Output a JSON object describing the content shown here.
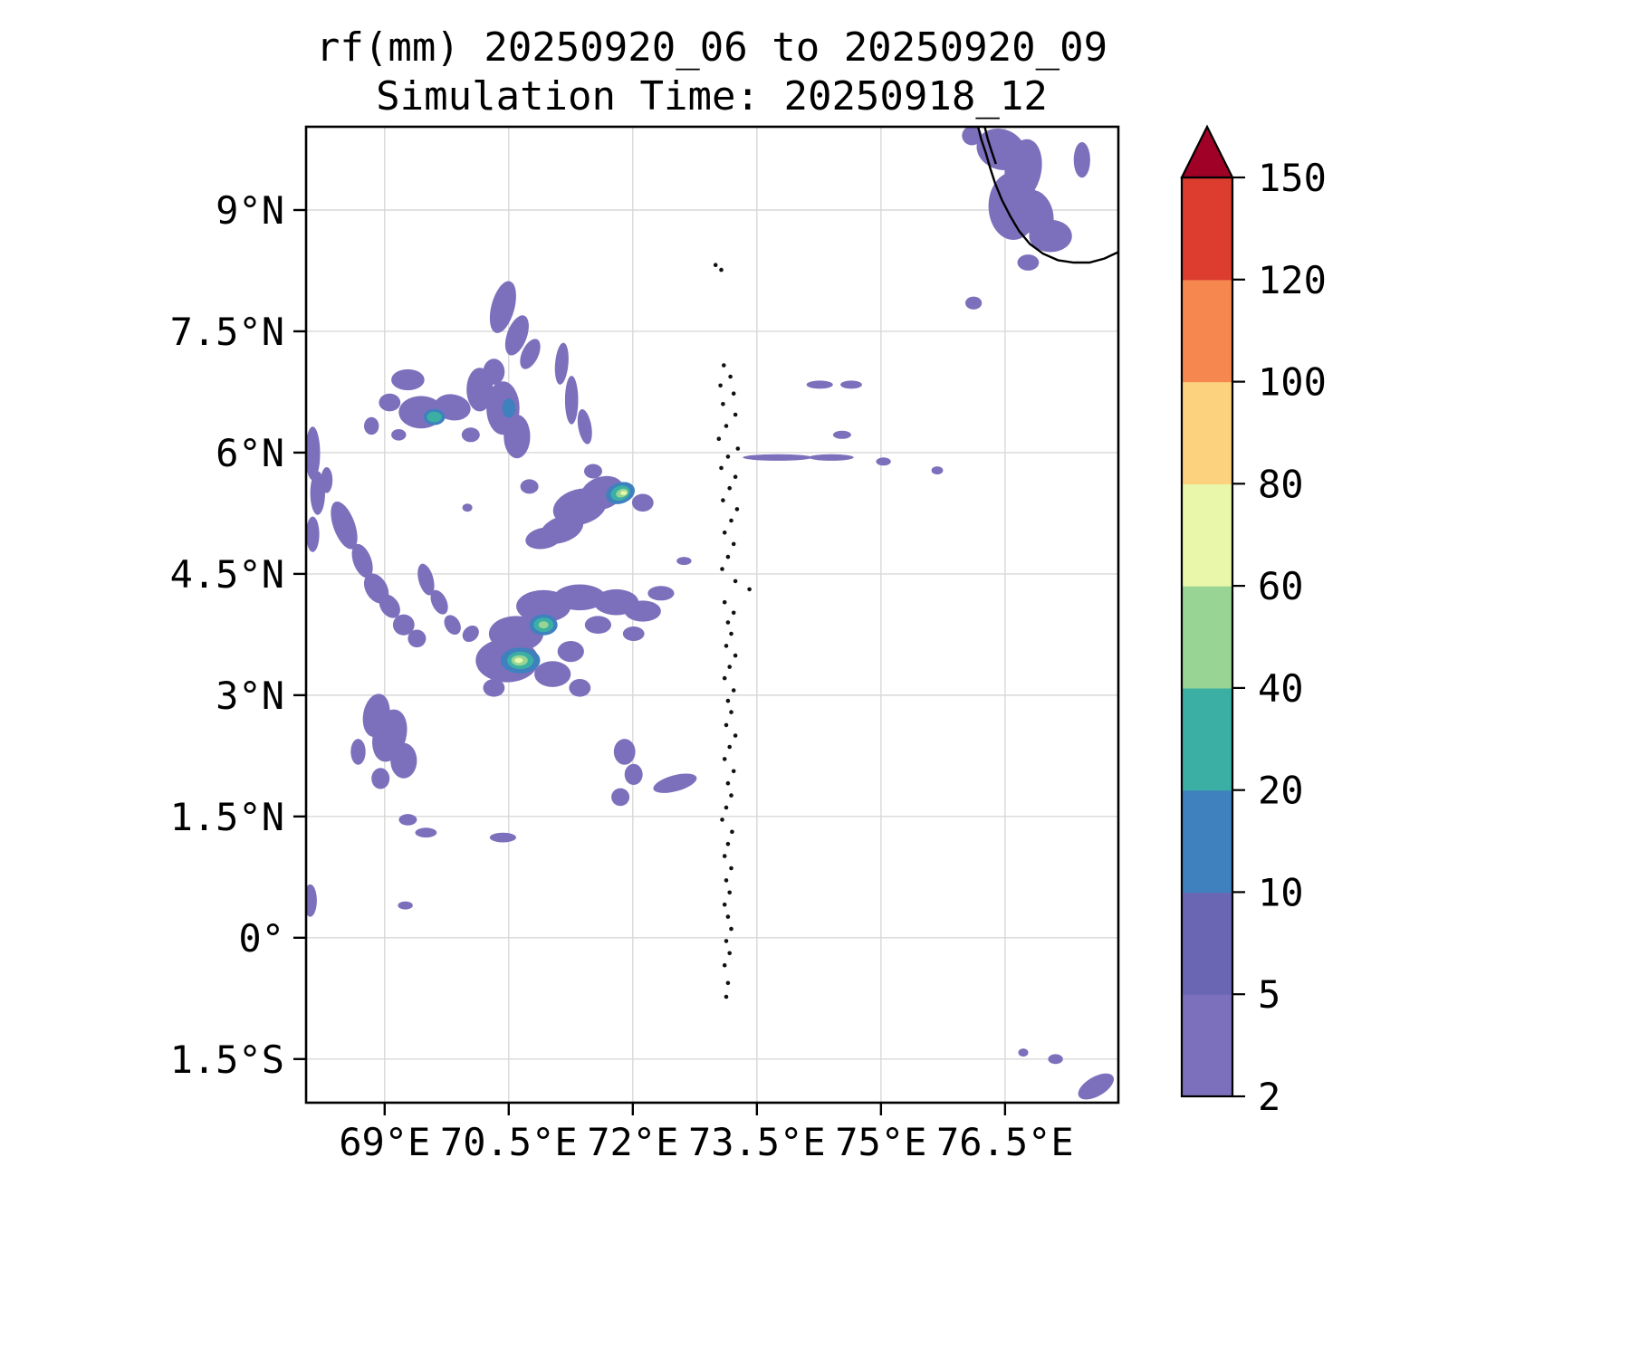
{
  "title": {
    "line1": "rf(mm) 20250920_06 to 20250920_09",
    "line2": "Simulation Time: 20250918_12"
  },
  "chart_data": {
    "type": "heatmap",
    "title": "rf(mm) 20250920_06 to 20250920_09",
    "subtitle": "Simulation Time: 20250918_12",
    "variable": "rf",
    "units": "mm",
    "valid_period": "20250920_06 to 20250920_09",
    "simulation_time": "20250918_12",
    "lon_range": [
      68.05,
      77.87
    ],
    "lat_range": [
      -2.04,
      10.03
    ],
    "grid": true,
    "grid_color": "#d8d8d8",
    "coastline_color": "#000000",
    "x_ticks": {
      "values": [
        69,
        70.5,
        72,
        73.5,
        75,
        76.5
      ],
      "labels": [
        "69°E",
        "70.5°E",
        "72°E",
        "73.5°E",
        "75°E",
        "76.5°E"
      ]
    },
    "y_ticks": {
      "values": [
        9,
        7.5,
        6,
        4.5,
        3,
        1.5,
        0,
        -1.5
      ],
      "labels": [
        "9°N",
        "7.5°N",
        "6°N",
        "4.5°N",
        "3°N",
        "1.5°N",
        "0°",
        "1.5°S"
      ]
    },
    "colorbar": {
      "levels": [
        2,
        5,
        10,
        20,
        40,
        60,
        80,
        100,
        120,
        150
      ],
      "tick_labels": [
        "2",
        "5",
        "10",
        "20",
        "40",
        "60",
        "80",
        "100",
        "120",
        "150"
      ],
      "colors": [
        "#7c70bc",
        "#6b66b4",
        "#3f80bf",
        "#3cafa4",
        "#98d595",
        "#e9f7aa",
        "#fdd27f",
        "#f6874f",
        "#dc3d2e"
      ],
      "over_color": "#a00126"
    },
    "rain_cells": [
      [
        76.45,
        9.75,
        0.3,
        0.25,
        20,
        2
      ],
      [
        76.72,
        9.5,
        0.22,
        0.38,
        10,
        2
      ],
      [
        76.6,
        9.05,
        0.3,
        0.42,
        0,
        2
      ],
      [
        76.88,
        8.95,
        0.2,
        0.3,
        -15,
        2
      ],
      [
        77.05,
        8.68,
        0.26,
        0.2,
        0,
        2
      ],
      [
        77.43,
        9.62,
        0.1,
        0.22,
        0,
        2
      ],
      [
        76.1,
        9.92,
        0.12,
        0.12,
        0,
        2
      ],
      [
        76.78,
        8.35,
        0.13,
        0.1,
        0,
        2
      ],
      [
        76.12,
        7.85,
        0.1,
        0.08,
        0,
        2
      ],
      [
        70.43,
        7.8,
        0.14,
        0.33,
        15,
        2
      ],
      [
        70.6,
        7.45,
        0.12,
        0.26,
        20,
        2
      ],
      [
        70.76,
        7.22,
        0.1,
        0.2,
        25,
        2
      ],
      [
        71.14,
        7.1,
        0.08,
        0.26,
        5,
        2
      ],
      [
        71.26,
        6.65,
        0.08,
        0.3,
        0,
        2
      ],
      [
        71.42,
        6.32,
        0.08,
        0.22,
        -10,
        2
      ],
      [
        69.28,
        6.9,
        0.2,
        0.13,
        0,
        2
      ],
      [
        69.06,
        6.62,
        0.13,
        0.11,
        0,
        2
      ],
      [
        69.44,
        6.5,
        0.27,
        0.2,
        0,
        2
      ],
      [
        69.82,
        6.56,
        0.22,
        0.16,
        10,
        2
      ],
      [
        70.15,
        6.78,
        0.16,
        0.27,
        0,
        2
      ],
      [
        70.32,
        7.0,
        0.13,
        0.16,
        0,
        2
      ],
      [
        70.43,
        6.55,
        0.2,
        0.33,
        0,
        2
      ],
      [
        70.6,
        6.2,
        0.16,
        0.27,
        0,
        2
      ],
      [
        70.04,
        6.22,
        0.11,
        0.09,
        0,
        2
      ],
      [
        69.17,
        6.22,
        0.09,
        0.07,
        0,
        2
      ],
      [
        68.84,
        6.33,
        0.09,
        0.11,
        0,
        2
      ],
      [
        68.13,
        5.99,
        0.09,
        0.33,
        0,
        2
      ],
      [
        68.19,
        5.5,
        0.09,
        0.27,
        0,
        2
      ],
      [
        68.13,
        4.99,
        0.08,
        0.22,
        0,
        2
      ],
      [
        68.3,
        5.66,
        0.07,
        0.16,
        0,
        2
      ],
      [
        68.51,
        5.1,
        0.13,
        0.31,
        -20,
        2
      ],
      [
        68.73,
        4.66,
        0.11,
        0.22,
        -20,
        2
      ],
      [
        68.9,
        4.32,
        0.13,
        0.2,
        -30,
        2
      ],
      [
        69.06,
        4.1,
        0.11,
        0.16,
        -35,
        2
      ],
      [
        69.23,
        3.87,
        0.13,
        0.13,
        0,
        2
      ],
      [
        69.39,
        3.7,
        0.11,
        0.11,
        0,
        2
      ],
      [
        69.5,
        4.43,
        0.09,
        0.2,
        -15,
        2
      ],
      [
        69.66,
        4.15,
        0.09,
        0.16,
        -25,
        2
      ],
      [
        69.82,
        3.87,
        0.09,
        0.13,
        -30,
        2
      ],
      [
        70.04,
        3.76,
        0.11,
        0.09,
        -45,
        2
      ],
      [
        71.36,
        5.33,
        0.33,
        0.22,
        -15,
        2
      ],
      [
        71.63,
        5.5,
        0.27,
        0.2,
        -20,
        2
      ],
      [
        71.14,
        5.05,
        0.27,
        0.16,
        -20,
        2
      ],
      [
        70.92,
        4.94,
        0.22,
        0.13,
        -10,
        2
      ],
      [
        72.12,
        5.38,
        0.13,
        0.11,
        0,
        2
      ],
      [
        71.52,
        5.77,
        0.11,
        0.09,
        0,
        2
      ],
      [
        70.75,
        5.58,
        0.11,
        0.09,
        0,
        2
      ],
      [
        70.0,
        5.32,
        0.06,
        0.05,
        0,
        2
      ],
      [
        70.92,
        4.1,
        0.33,
        0.2,
        0,
        2
      ],
      [
        71.36,
        4.21,
        0.31,
        0.16,
        0,
        2
      ],
      [
        71.8,
        4.15,
        0.27,
        0.16,
        0,
        2
      ],
      [
        72.12,
        4.04,
        0.22,
        0.13,
        0,
        2
      ],
      [
        70.59,
        3.76,
        0.33,
        0.22,
        0,
        2
      ],
      [
        70.48,
        3.43,
        0.38,
        0.27,
        0,
        2
      ],
      [
        71.03,
        3.26,
        0.22,
        0.16,
        0,
        2
      ],
      [
        71.25,
        3.54,
        0.16,
        0.13,
        0,
        2
      ],
      [
        71.36,
        3.09,
        0.13,
        0.11,
        0,
        2
      ],
      [
        70.32,
        3.09,
        0.13,
        0.11,
        0,
        2
      ],
      [
        71.58,
        3.87,
        0.16,
        0.11,
        0,
        2
      ],
      [
        72.01,
        3.76,
        0.13,
        0.09,
        0,
        2
      ],
      [
        72.34,
        4.26,
        0.16,
        0.09,
        0,
        2
      ],
      [
        72.62,
        4.66,
        0.09,
        0.05,
        0,
        2
      ],
      [
        68.9,
        2.75,
        0.16,
        0.27,
        10,
        2
      ],
      [
        69.06,
        2.5,
        0.2,
        0.33,
        15,
        2
      ],
      [
        69.23,
        2.19,
        0.16,
        0.22,
        0,
        2
      ],
      [
        68.95,
        1.97,
        0.11,
        0.13,
        0,
        2
      ],
      [
        68.68,
        2.3,
        0.09,
        0.16,
        0,
        2
      ],
      [
        69.28,
        1.46,
        0.11,
        0.07,
        0,
        2
      ],
      [
        69.5,
        1.3,
        0.13,
        0.06,
        0,
        2
      ],
      [
        70.43,
        1.24,
        0.16,
        0.06,
        0,
        2
      ],
      [
        71.9,
        2.3,
        0.13,
        0.16,
        0,
        2
      ],
      [
        72.01,
        2.02,
        0.11,
        0.13,
        0,
        2
      ],
      [
        71.85,
        1.74,
        0.11,
        0.11,
        0,
        2
      ],
      [
        72.51,
        1.91,
        0.27,
        0.1,
        -15,
        2
      ],
      [
        68.1,
        0.46,
        0.08,
        0.2,
        0,
        2
      ],
      [
        69.25,
        0.4,
        0.09,
        0.05,
        0,
        2
      ],
      [
        74.26,
        6.84,
        0.16,
        0.05,
        0,
        2
      ],
      [
        74.64,
        6.84,
        0.13,
        0.05,
        0,
        2
      ],
      [
        74.53,
        6.22,
        0.11,
        0.05,
        0,
        2
      ],
      [
        73.75,
        5.94,
        0.42,
        0.04,
        0,
        2
      ],
      [
        74.4,
        5.94,
        0.27,
        0.04,
        0,
        2
      ],
      [
        75.03,
        5.89,
        0.09,
        0.05,
        0,
        2
      ],
      [
        75.68,
        5.78,
        0.07,
        0.05,
        0,
        2
      ],
      [
        77.6,
        -1.84,
        0.24,
        0.12,
        -30,
        2
      ],
      [
        77.11,
        -1.5,
        0.09,
        0.06,
        0,
        2
      ],
      [
        76.72,
        -1.42,
        0.06,
        0.05,
        0,
        2
      ],
      [
        69.6,
        6.44,
        0.13,
        0.1,
        0,
        10
      ],
      [
        71.85,
        5.5,
        0.18,
        0.13,
        -20,
        10
      ],
      [
        70.92,
        3.87,
        0.17,
        0.13,
        0,
        10
      ],
      [
        70.64,
        3.43,
        0.24,
        0.16,
        0,
        10
      ],
      [
        70.5,
        6.55,
        0.08,
        0.12,
        0,
        10
      ],
      [
        69.6,
        6.44,
        0.09,
        0.065,
        0,
        20
      ],
      [
        71.85,
        5.5,
        0.12,
        0.09,
        -20,
        20
      ],
      [
        70.92,
        3.87,
        0.12,
        0.09,
        0,
        20
      ],
      [
        70.64,
        3.43,
        0.16,
        0.11,
        0,
        20
      ],
      [
        71.87,
        5.5,
        0.075,
        0.05,
        -20,
        40
      ],
      [
        70.92,
        3.87,
        0.06,
        0.045,
        0,
        40
      ],
      [
        70.63,
        3.43,
        0.1,
        0.065,
        0,
        40
      ],
      [
        71.89,
        5.5,
        0.04,
        0.026,
        0,
        60
      ],
      [
        70.62,
        3.43,
        0.05,
        0.032,
        0,
        60
      ]
    ],
    "coastlines": [
      [
        [
          76.17,
          10.05
        ],
        [
          76.21,
          9.88
        ],
        [
          76.27,
          9.7
        ],
        [
          76.32,
          9.52
        ],
        [
          76.38,
          9.33
        ],
        [
          76.46,
          9.13
        ],
        [
          76.56,
          8.93
        ],
        [
          76.67,
          8.74
        ],
        [
          76.8,
          8.58
        ],
        [
          76.96,
          8.46
        ],
        [
          77.14,
          8.38
        ],
        [
          77.33,
          8.35
        ],
        [
          77.52,
          8.35
        ],
        [
          77.7,
          8.4
        ],
        [
          77.87,
          8.48
        ]
      ],
      [
        [
          76.25,
          10.05
        ],
        [
          76.29,
          9.88
        ],
        [
          76.34,
          9.72
        ],
        [
          76.39,
          9.57
        ]
      ]
    ],
    "islands": [
      [
        73.0,
        8.32
      ],
      [
        73.07,
        8.26
      ],
      [
        73.1,
        7.08
      ],
      [
        73.18,
        6.94
      ],
      [
        73.06,
        6.83
      ],
      [
        73.22,
        6.73
      ],
      [
        73.09,
        6.6
      ],
      [
        73.24,
        6.47
      ],
      [
        73.13,
        6.33
      ],
      [
        73.04,
        6.17
      ],
      [
        73.27,
        6.05
      ],
      [
        73.15,
        5.95
      ],
      [
        73.07,
        5.81
      ],
      [
        73.24,
        5.7
      ],
      [
        73.17,
        5.56
      ],
      [
        73.09,
        5.41
      ],
      [
        73.26,
        5.3
      ],
      [
        73.19,
        5.16
      ],
      [
        73.11,
        5.01
      ],
      [
        73.22,
        4.87
      ],
      [
        73.15,
        4.71
      ],
      [
        73.08,
        4.56
      ],
      [
        73.24,
        4.41
      ],
      [
        73.41,
        4.31
      ],
      [
        73.11,
        4.15
      ],
      [
        73.22,
        4.02
      ],
      [
        73.15,
        3.9
      ],
      [
        73.19,
        3.76
      ],
      [
        73.13,
        3.61
      ],
      [
        73.24,
        3.49
      ],
      [
        73.17,
        3.35
      ],
      [
        73.11,
        3.21
      ],
      [
        73.22,
        3.06
      ],
      [
        73.15,
        2.93
      ],
      [
        73.19,
        2.79
      ],
      [
        73.13,
        2.63
      ],
      [
        73.24,
        2.5
      ],
      [
        73.17,
        2.36
      ],
      [
        73.11,
        2.21
      ],
      [
        73.22,
        2.06
      ],
      [
        73.15,
        1.91
      ],
      [
        73.19,
        1.76
      ],
      [
        73.13,
        1.61
      ],
      [
        73.08,
        1.46
      ],
      [
        73.2,
        1.31
      ],
      [
        73.15,
        1.16
      ],
      [
        73.11,
        1.01
      ],
      [
        73.19,
        0.86
      ],
      [
        73.13,
        0.71
      ],
      [
        73.17,
        0.56
      ],
      [
        73.11,
        0.41
      ],
      [
        73.15,
        0.26
      ],
      [
        73.19,
        0.11
      ],
      [
        73.13,
        -0.04
      ],
      [
        73.17,
        -0.19
      ],
      [
        73.11,
        -0.34
      ],
      [
        73.15,
        -0.56
      ],
      [
        73.13,
        -0.73
      ]
    ],
    "island_marker": {
      "radius_px": 2.3,
      "color": "#111111"
    }
  }
}
